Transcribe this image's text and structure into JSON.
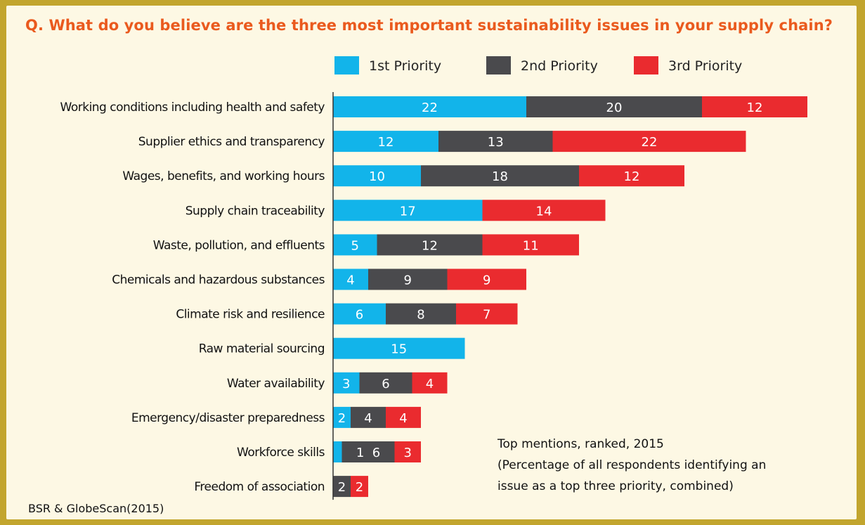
{
  "question": "Q. What do you believe are the three most important sustainability issues in your supply chain?",
  "note": {
    "line1": "Top mentions, ranked, 2015",
    "line2": "(Percentage of all respondents identifying an",
    "line3": "issue as a top three priority, combined)"
  },
  "source": "BSR & GlobeScan(2015)",
  "colors": {
    "background": "#fdf8e4",
    "border": "#c2a52e",
    "title": "#ea5a1e"
  },
  "chart_data": {
    "type": "bar",
    "orientation": "horizontal",
    "stacked": true,
    "categories": [
      "Working conditions including health and safety",
      "Supplier ethics and transparency",
      "Wages, benefits, and working hours",
      "Supply chain traceability",
      "Waste, pollution, and effluents",
      "Chemicals and hazardous substances",
      "Climate risk and resilience",
      "Raw material sourcing",
      "Water availability",
      "Emergency/disaster preparedness",
      "Workforce skills",
      "Freedom of association"
    ],
    "series": [
      {
        "name": "1st Priority",
        "color": "#12b4ea",
        "values": [
          22,
          12,
          10,
          17,
          5,
          4,
          6,
          15,
          3,
          2,
          1,
          0
        ],
        "labels": [
          "22",
          "12",
          "10",
          "17",
          "5",
          "4",
          "6",
          "15",
          "3",
          "2",
          "",
          ""
        ]
      },
      {
        "name": "2nd Priority",
        "color": "#4a4a4d",
        "values": [
          20,
          13,
          18,
          0,
          12,
          9,
          8,
          0,
          6,
          4,
          6,
          2
        ],
        "labels": [
          "20",
          "13",
          "18",
          "",
          "12",
          "9",
          "8",
          "",
          "6",
          "4",
          "1  6",
          "2"
        ]
      },
      {
        "name": "3rd Priority",
        "color": "#ea2b2f",
        "values": [
          12,
          22,
          12,
          14,
          11,
          9,
          7,
          0,
          4,
          4,
          3,
          2
        ],
        "labels": [
          "12",
          "22",
          "12",
          "14",
          "11",
          "9",
          "7",
          "",
          "4",
          "4",
          "3",
          "2"
        ]
      }
    ],
    "legend_position": "top",
    "grid": false
  }
}
